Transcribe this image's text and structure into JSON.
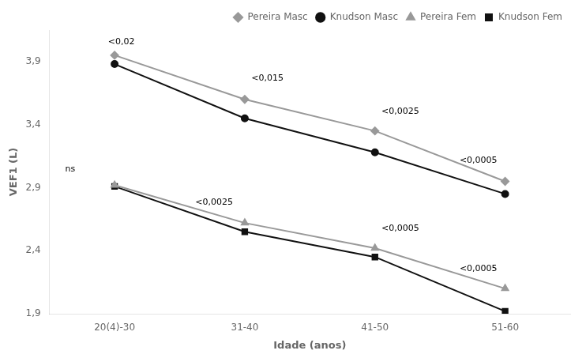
{
  "chart_data": {
    "type": "line",
    "categories": [
      "20(4)-30",
      "31-40",
      "41-50",
      "51-60"
    ],
    "series": [
      {
        "name": "Pereira Masc",
        "color": "#999999",
        "marker": "diamond",
        "values": [
          3.95,
          3.6,
          3.35,
          2.95
        ]
      },
      {
        "name": "Knudson Masc",
        "color": "#111111",
        "marker": "circle",
        "values": [
          3.88,
          3.45,
          3.18,
          2.85
        ]
      },
      {
        "name": "Pereira Fem",
        "color": "#999999",
        "marker": "triangle",
        "values": [
          2.92,
          2.62,
          2.42,
          2.1
        ]
      },
      {
        "name": "Knudson Fem",
        "color": "#111111",
        "marker": "square",
        "values": [
          2.91,
          2.55,
          2.35,
          1.92
        ]
      }
    ],
    "xlabel": "Idade (anos)",
    "ylabel": "VEF1 (L)",
    "ylim": [
      1.9,
      4.15
    ],
    "yticks": [
      {
        "value": 1.9,
        "label": "1,9"
      },
      {
        "value": 2.4,
        "label": "2,4"
      },
      {
        "value": 2.9,
        "label": "2,9"
      },
      {
        "value": 3.4,
        "label": "3,4"
      },
      {
        "value": 3.9,
        "label": "3,9"
      }
    ],
    "annotations": [
      {
        "text": "<0,02",
        "x": -0.05,
        "y": 4.02
      },
      {
        "text": "<0,015",
        "x": 1.05,
        "y": 3.73
      },
      {
        "text": "<0,0025",
        "x": 2.05,
        "y": 3.47
      },
      {
        "text": "<0,0005",
        "x": 2.65,
        "y": 3.08
      },
      {
        "text": "ns",
        "x": -0.38,
        "y": 3.01
      },
      {
        "text": "<0,0025",
        "x": 0.62,
        "y": 2.75
      },
      {
        "text": "<0,0005",
        "x": 2.05,
        "y": 2.54
      },
      {
        "text": "<0,0005",
        "x": 2.65,
        "y": 2.22
      }
    ],
    "legend": "upper right",
    "grid": false
  }
}
